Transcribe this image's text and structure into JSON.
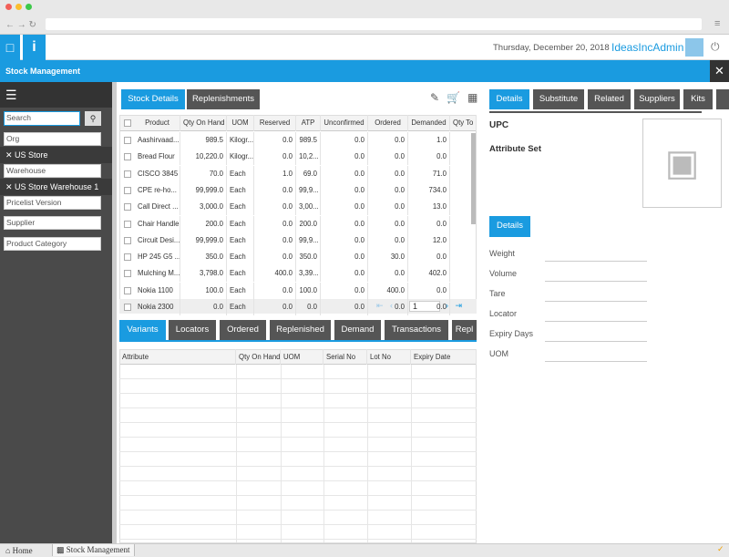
{
  "header": {
    "date": "Thursday, December 20, 2018",
    "user": "IdeasIncAdmin"
  },
  "title": "Stock Management",
  "sidebar": {
    "search": "Search",
    "org": "Org",
    "org_selected": "US Store",
    "warehouse": "Warehouse",
    "warehouse_selected": "US Store Warehouse 1",
    "pricelist": "Pricelist Version",
    "supplier": "Supplier",
    "category": "Product Category"
  },
  "main_tabs": [
    "Stock Details",
    "Replenishments"
  ],
  "stock_table": {
    "columns": [
      "Product",
      "Qty On Hand",
      "UOM",
      "Reserved",
      "ATP",
      "Unconfirmed",
      "Ordered",
      "Demanded",
      "Qty To"
    ],
    "rows": [
      [
        "Aashirvaad...",
        "989.5",
        "Kilogr...",
        "0.0",
        "989.5",
        "0.0",
        "0.0",
        "1.0"
      ],
      [
        "Bread Flour",
        "10,220.0",
        "Kilogr...",
        "0.0",
        "10,2...",
        "0.0",
        "0.0",
        "0.0"
      ],
      [
        "CISCO 3845",
        "70.0",
        "Each",
        "1.0",
        "69.0",
        "0.0",
        "0.0",
        "71.0"
      ],
      [
        "CPE re-ho...",
        "99,999.0",
        "Each",
        "0.0",
        "99,9...",
        "0.0",
        "0.0",
        "734.0"
      ],
      [
        "Call Direct ...",
        "3,000.0",
        "Each",
        "0.0",
        "3,00...",
        "0.0",
        "0.0",
        "13.0"
      ],
      [
        "Chair Handle",
        "200.0",
        "Each",
        "0.0",
        "200.0",
        "0.0",
        "0.0",
        "0.0"
      ],
      [
        "Circuit Desi...",
        "99,999.0",
        "Each",
        "0.0",
        "99,9...",
        "0.0",
        "0.0",
        "12.0"
      ],
      [
        "HP 245 G5 ...",
        "350.0",
        "Each",
        "0.0",
        "350.0",
        "0.0",
        "30.0",
        "0.0"
      ],
      [
        "Mulching M...",
        "3,798.0",
        "Each",
        "400.0",
        "3,39...",
        "0.0",
        "0.0",
        "402.0"
      ],
      [
        "Nokia 1100",
        "100.0",
        "Each",
        "0.0",
        "100.0",
        "0.0",
        "400.0",
        "0.0"
      ],
      [
        "Nokia 2300",
        "0.0",
        "Each",
        "0.0",
        "0.0",
        "0.0",
        "0.0",
        "0.0"
      ]
    ],
    "page": "1"
  },
  "bottom_tabs": [
    "Variants",
    "Locators",
    "Ordered",
    "Replenished",
    "Demand",
    "Transactions",
    "Repl"
  ],
  "variant_table": {
    "columns": [
      "Attribute",
      "Qty On Hand",
      "UOM",
      "Serial No",
      "Lot No",
      "Expiry Date"
    ]
  },
  "detail_tabs": [
    "Details",
    "Substitute",
    "Related",
    "Suppliers",
    "Kits"
  ],
  "details": {
    "upc": "UPC",
    "attribute_set": "Attribute Set",
    "button": "Details",
    "fields": [
      "Weight",
      "Volume",
      "Tare",
      "Locator",
      "Expiry Days",
      "UOM"
    ]
  },
  "taskbar": [
    "Home",
    "Stock Management"
  ]
}
